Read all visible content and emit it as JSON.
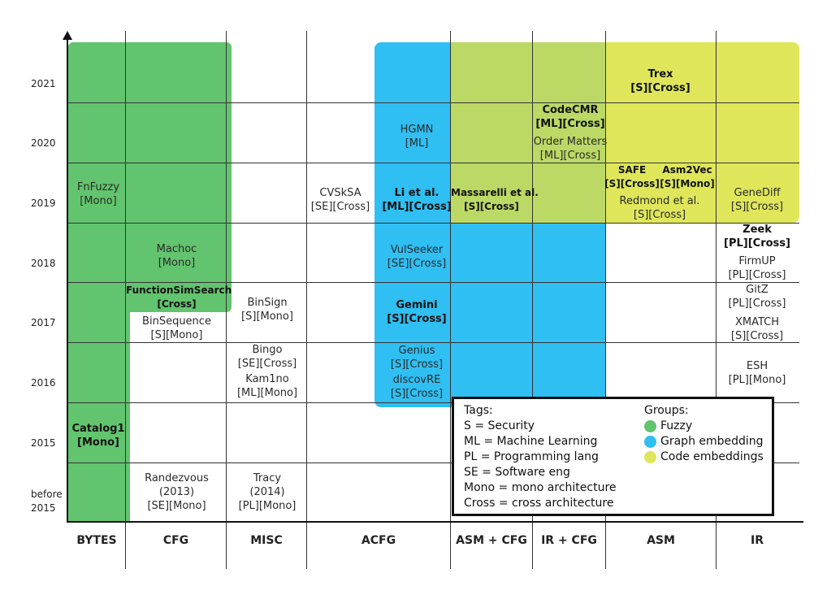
{
  "years": [
    "2021",
    "2020",
    "2019",
    "2018",
    "2017",
    "2016",
    "2015",
    "before 2015"
  ],
  "columns": [
    "BYTES",
    "CFG",
    "MISC",
    "ACFG",
    "ASM + CFG",
    "IR + CFG",
    "ASM",
    "IR"
  ],
  "entries": [
    {
      "name": "FnFuzzy",
      "tags": "[Mono]",
      "bold": false
    },
    {
      "name": "Catalog1",
      "tags": "[Mono]",
      "bold": true
    },
    {
      "name": "Machoc",
      "tags": "[Mono]",
      "bold": false
    },
    {
      "name": "FunctionSimSearch",
      "tags": "[Cross]",
      "bold": true
    },
    {
      "name": "BinSequence",
      "tags": "[S][Mono]",
      "bold": false
    },
    {
      "name": "Randezvous",
      "tags": "(2013)",
      "tags2": "[SE][Mono]",
      "bold": false
    },
    {
      "name": "BinSign",
      "tags": "[S][Mono]",
      "bold": false
    },
    {
      "name": "Bingo",
      "tags": "[SE][Cross]",
      "bold": false
    },
    {
      "name": "Kam1no",
      "tags": "[ML][Mono]",
      "bold": false
    },
    {
      "name": "Tracy",
      "tags": "(2014)",
      "tags2": "[PL][Mono]",
      "bold": false
    },
    {
      "name": "CVSkSA",
      "tags": "[SE][Cross]",
      "bold": false
    },
    {
      "name": "HGMN",
      "tags": "[ML]",
      "bold": false
    },
    {
      "name": "Li et al.",
      "tags": "[ML][Cross]",
      "bold": true
    },
    {
      "name": "VulSeeker",
      "tags": "[SE][Cross]",
      "bold": false
    },
    {
      "name": "Gemini",
      "tags": "[S][Cross]",
      "bold": true
    },
    {
      "name": "Genius",
      "tags": "[S][Cross]",
      "bold": false
    },
    {
      "name": "discovRE",
      "tags": "[S][Cross]",
      "bold": false
    },
    {
      "name": "Massarelli et al.",
      "tags": "[S][Cross]",
      "bold": true
    },
    {
      "name": "CodeCMR",
      "tags": "[ML][Cross]",
      "bold": true
    },
    {
      "name": "Order Matters",
      "tags": "[ML][Cross]",
      "bold": false
    },
    {
      "name": "Trex",
      "tags": "[S][Cross]",
      "bold": true
    },
    {
      "name": "SAFE",
      "tags": "[S][Cross]",
      "bold": true
    },
    {
      "name": "Asm2Vec",
      "tags": "[S][Mono]",
      "bold": true
    },
    {
      "name": "Redmond et al.",
      "tags": "[S][Cross]",
      "bold": false
    },
    {
      "name": "GeneDiff",
      "tags": "[S][Cross]",
      "bold": false
    },
    {
      "name": "Zeek",
      "tags": "[PL][Cross]",
      "bold": true
    },
    {
      "name": "FirmUP",
      "tags": "[PL][Cross]",
      "bold": false
    },
    {
      "name": "GitZ",
      "tags": "[PL][Cross]",
      "bold": false
    },
    {
      "name": "XMATCH",
      "tags": "[S][Cross]",
      "bold": false
    },
    {
      "name": "ESH",
      "tags": "[PL][Mono]",
      "bold": false
    }
  ],
  "legend": {
    "tags_title": "Tags:",
    "tags": [
      "S = Security",
      "ML = Machine Learning",
      "PL = Programming lang",
      "SE = Software eng",
      "Mono = mono architecture",
      "Cross = cross architecture"
    ],
    "groups_title": "Groups:",
    "groups": [
      {
        "label": "Fuzzy",
        "color": "#62c46e"
      },
      {
        "label": "Graph embedding",
        "color": "#2fbff3"
      },
      {
        "label": "Code embeddings",
        "color": "#dfe65a"
      }
    ]
  },
  "colors": {
    "fuzzy": "#62c46e",
    "graph_embedding": "#2fbff3",
    "code_embedding_mixed": "#bcd965",
    "code_embeddings": "#dfe65a"
  }
}
